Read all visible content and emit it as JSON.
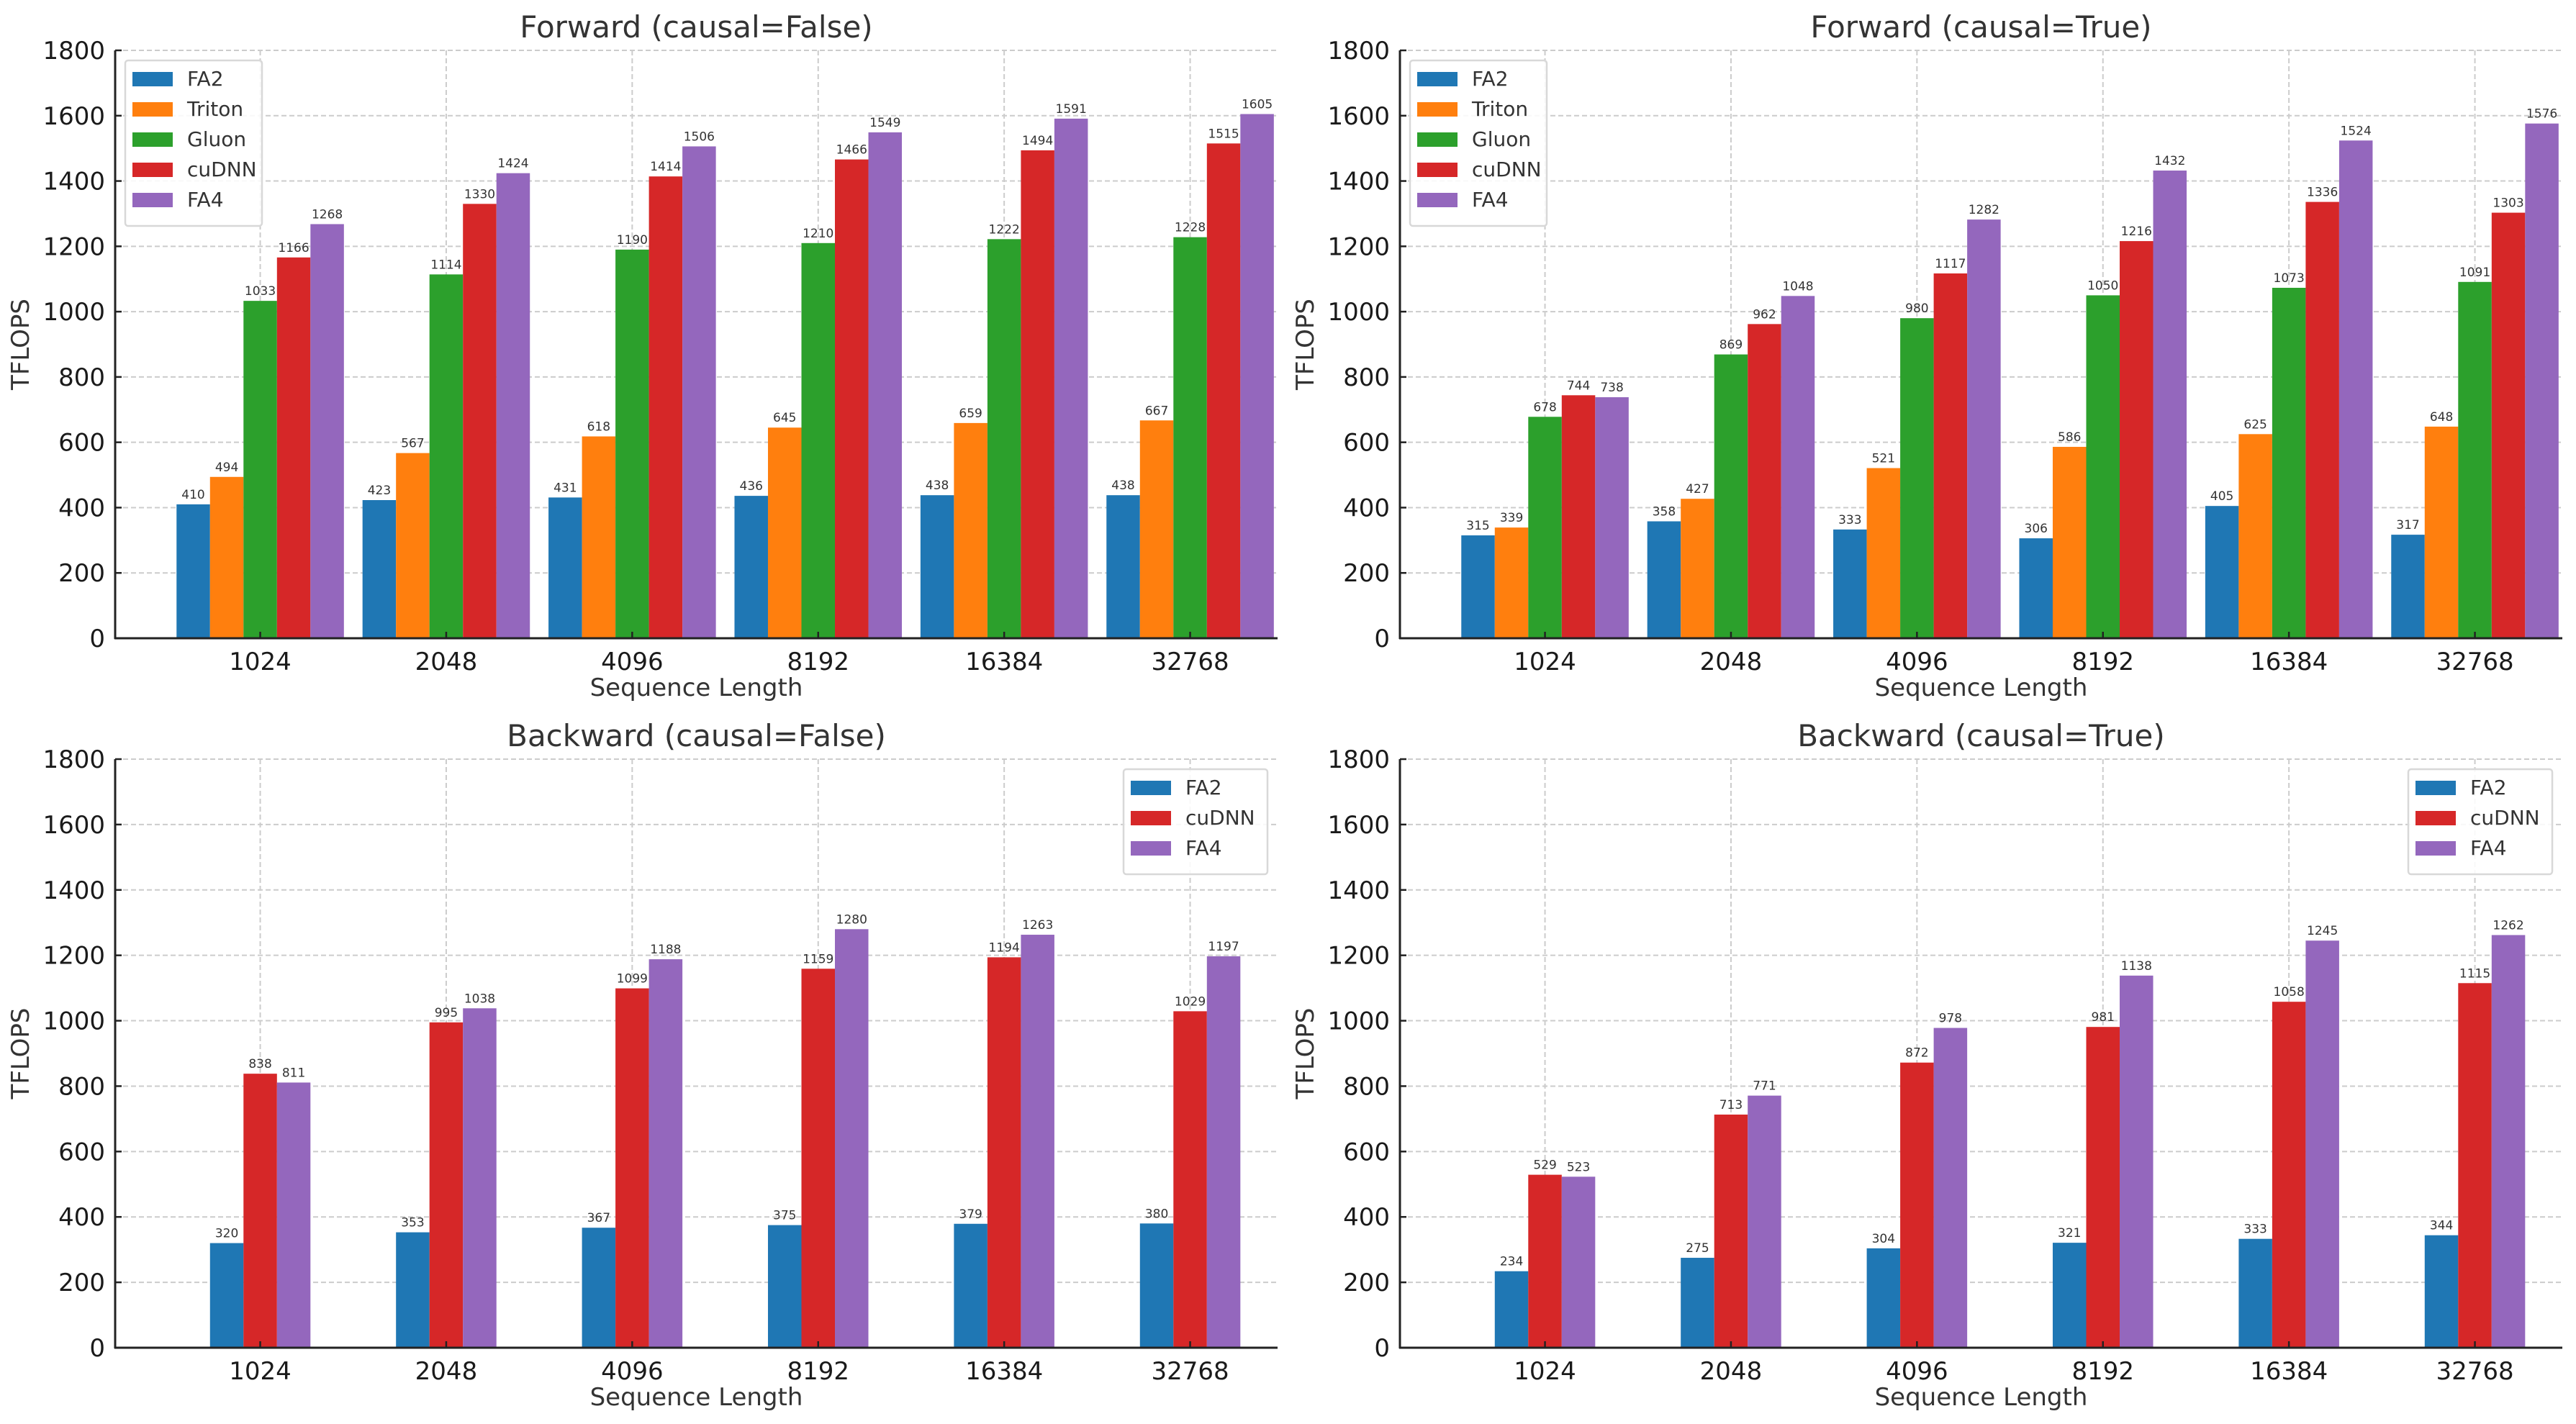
{
  "figure": {
    "background": "#ffffff"
  },
  "chart_data": [
    {
      "type": "bar",
      "title": "Forward (causal=False)",
      "xlabel": "Sequence Length",
      "ylabel": "TFLOPS",
      "ylim": [
        0,
        1800
      ],
      "yticks": [
        0,
        200,
        400,
        600,
        800,
        1000,
        1200,
        1400,
        1600,
        1800
      ],
      "grid": true,
      "legend_position": "upper-left",
      "categories": [
        "1024",
        "2048",
        "4096",
        "8192",
        "16384",
        "32768"
      ],
      "series": [
        {
          "name": "FA2",
          "color": "#1f77b4",
          "values": [
            410,
            423,
            431,
            436,
            438,
            438
          ]
        },
        {
          "name": "Triton",
          "color": "#ff7f0e",
          "values": [
            494,
            567,
            618,
            645,
            659,
            667
          ]
        },
        {
          "name": "Gluon",
          "color": "#2ca02c",
          "values": [
            1033,
            1114,
            1190,
            1210,
            1222,
            1228
          ]
        },
        {
          "name": "cuDNN",
          "color": "#d62728",
          "values": [
            1166,
            1330,
            1414,
            1466,
            1494,
            1515
          ]
        },
        {
          "name": "FA4",
          "color": "#9467bd",
          "values": [
            1268,
            1424,
            1506,
            1549,
            1591,
            1605
          ]
        }
      ]
    },
    {
      "type": "bar",
      "title": "Forward (causal=True)",
      "xlabel": "Sequence Length",
      "ylabel": "TFLOPS",
      "ylim": [
        0,
        1800
      ],
      "yticks": [
        0,
        200,
        400,
        600,
        800,
        1000,
        1200,
        1400,
        1600,
        1800
      ],
      "grid": true,
      "legend_position": "upper-left",
      "categories": [
        "1024",
        "2048",
        "4096",
        "8192",
        "16384",
        "32768"
      ],
      "series": [
        {
          "name": "FA2",
          "color": "#1f77b4",
          "values": [
            315,
            358,
            333,
            306,
            405,
            317
          ]
        },
        {
          "name": "Triton",
          "color": "#ff7f0e",
          "values": [
            339,
            427,
            521,
            586,
            625,
            648
          ]
        },
        {
          "name": "Gluon",
          "color": "#2ca02c",
          "values": [
            678,
            869,
            980,
            1050,
            1073,
            1091
          ]
        },
        {
          "name": "cuDNN",
          "color": "#d62728",
          "values": [
            744,
            962,
            1117,
            1216,
            1336,
            1303
          ]
        },
        {
          "name": "FA4",
          "color": "#9467bd",
          "values": [
            738,
            1048,
            1282,
            1432,
            1524,
            1576
          ]
        }
      ]
    },
    {
      "type": "bar",
      "title": "Backward (causal=False)",
      "xlabel": "Sequence Length",
      "ylabel": "TFLOPS",
      "ylim": [
        0,
        1800
      ],
      "yticks": [
        0,
        200,
        400,
        600,
        800,
        1000,
        1200,
        1400,
        1600,
        1800
      ],
      "grid": true,
      "legend_position": "upper-right",
      "categories": [
        "1024",
        "2048",
        "4096",
        "8192",
        "16384",
        "32768"
      ],
      "series": [
        {
          "name": "FA2",
          "color": "#1f77b4",
          "values": [
            320,
            353,
            367,
            375,
            379,
            380
          ]
        },
        {
          "name": "cuDNN",
          "color": "#d62728",
          "values": [
            838,
            995,
            1099,
            1159,
            1194,
            1029
          ]
        },
        {
          "name": "FA4",
          "color": "#9467bd",
          "values": [
            811,
            1038,
            1188,
            1280,
            1263,
            1197
          ]
        }
      ]
    },
    {
      "type": "bar",
      "title": "Backward (causal=True)",
      "xlabel": "Sequence Length",
      "ylabel": "TFLOPS",
      "ylim": [
        0,
        1800
      ],
      "yticks": [
        0,
        200,
        400,
        600,
        800,
        1000,
        1200,
        1400,
        1600,
        1800
      ],
      "grid": true,
      "legend_position": "upper-right",
      "categories": [
        "1024",
        "2048",
        "4096",
        "8192",
        "16384",
        "32768"
      ],
      "series": [
        {
          "name": "FA2",
          "color": "#1f77b4",
          "values": [
            234,
            275,
            304,
            321,
            333,
            344
          ]
        },
        {
          "name": "cuDNN",
          "color": "#d62728",
          "values": [
            529,
            713,
            872,
            981,
            1058,
            1115
          ]
        },
        {
          "name": "FA4",
          "color": "#9467bd",
          "values": [
            523,
            771,
            978,
            1138,
            1245,
            1262
          ]
        }
      ]
    }
  ]
}
